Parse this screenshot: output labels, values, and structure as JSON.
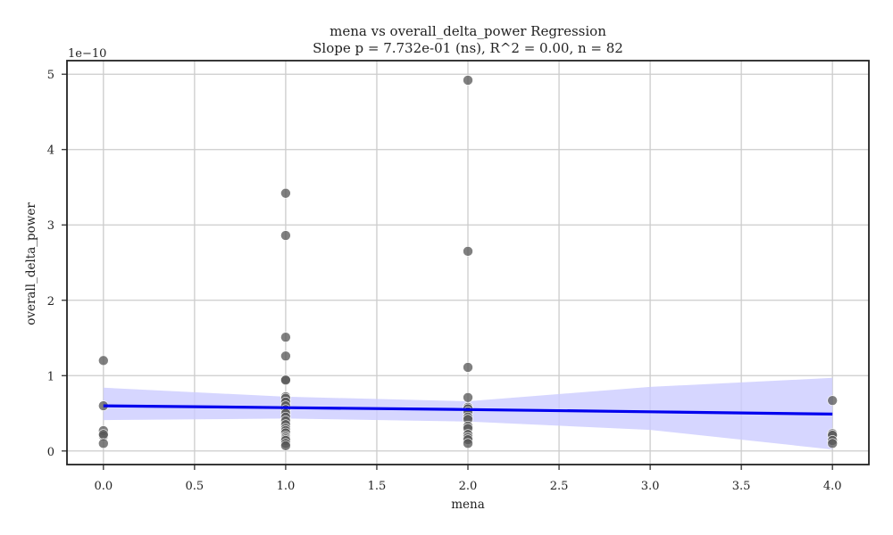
{
  "chart_data": {
    "type": "scatter",
    "title": "mena vs overall_delta_power Regression",
    "subtitle": "Slope p = 7.732e-01 (ns), R^2 = 0.00, n = 82",
    "xlabel": "mena",
    "ylabel": "overall_delta_power",
    "y_offset_label": "1e−10",
    "xlim": [
      -0.2,
      4.2
    ],
    "ylim": [
      -0.18,
      5.18
    ],
    "x_ticks": [
      0.0,
      0.5,
      1.0,
      1.5,
      2.0,
      2.5,
      3.0,
      3.5,
      4.0
    ],
    "x_tick_labels": [
      "0.0",
      "0.5",
      "1.0",
      "1.5",
      "2.0",
      "2.5",
      "3.0",
      "3.5",
      "4.0"
    ],
    "y_ticks": [
      0,
      1,
      2,
      3,
      4,
      5
    ],
    "y_tick_labels": [
      "0",
      "1",
      "2",
      "3",
      "4",
      "5"
    ],
    "grid": true,
    "point_color": "#555555",
    "regression": {
      "color": "#0000ee",
      "band_color": "#ccccff",
      "x": [
        0.0,
        1.0,
        2.0,
        3.0,
        4.0
      ],
      "y": [
        0.6,
        0.575,
        0.55,
        0.52,
        0.49
      ],
      "ci_low": [
        0.41,
        0.43,
        0.39,
        0.28,
        0.02
      ],
      "ci_high": [
        0.84,
        0.72,
        0.66,
        0.85,
        0.97
      ]
    },
    "points": [
      {
        "x": 0,
        "y": 1.2
      },
      {
        "x": 0,
        "y": 0.6
      },
      {
        "x": 0,
        "y": 0.27
      },
      {
        "x": 0,
        "y": 0.2
      },
      {
        "x": 0,
        "y": 0.22
      },
      {
        "x": 0,
        "y": 0.1
      },
      {
        "x": 1,
        "y": 3.42
      },
      {
        "x": 1,
        "y": 2.86
      },
      {
        "x": 1,
        "y": 1.51
      },
      {
        "x": 1,
        "y": 1.26
      },
      {
        "x": 1,
        "y": 0.95
      },
      {
        "x": 1,
        "y": 0.94
      },
      {
        "x": 1,
        "y": 0.72
      },
      {
        "x": 1,
        "y": 0.7
      },
      {
        "x": 1,
        "y": 0.65
      },
      {
        "x": 1,
        "y": 0.6
      },
      {
        "x": 1,
        "y": 0.55
      },
      {
        "x": 1,
        "y": 0.5
      },
      {
        "x": 1,
        "y": 0.45
      },
      {
        "x": 1,
        "y": 0.4
      },
      {
        "x": 1,
        "y": 0.35
      },
      {
        "x": 1,
        "y": 0.3
      },
      {
        "x": 1,
        "y": 0.27
      },
      {
        "x": 1,
        "y": 0.24
      },
      {
        "x": 1,
        "y": 0.2
      },
      {
        "x": 1,
        "y": 0.18
      },
      {
        "x": 1,
        "y": 0.16
      },
      {
        "x": 1,
        "y": 0.14
      },
      {
        "x": 1,
        "y": 0.1
      },
      {
        "x": 1,
        "y": 0.07
      },
      {
        "x": 2,
        "y": 4.92
      },
      {
        "x": 2,
        "y": 2.65
      },
      {
        "x": 2,
        "y": 1.11
      },
      {
        "x": 2,
        "y": 0.71
      },
      {
        "x": 2,
        "y": 0.58
      },
      {
        "x": 2,
        "y": 0.56
      },
      {
        "x": 2,
        "y": 0.52
      },
      {
        "x": 2,
        "y": 0.45
      },
      {
        "x": 2,
        "y": 0.42
      },
      {
        "x": 2,
        "y": 0.33
      },
      {
        "x": 2,
        "y": 0.3
      },
      {
        "x": 2,
        "y": 0.22
      },
      {
        "x": 2,
        "y": 0.18
      },
      {
        "x": 2,
        "y": 0.15
      },
      {
        "x": 2,
        "y": 0.1
      },
      {
        "x": 4,
        "y": 0.67
      },
      {
        "x": 4,
        "y": 0.23
      },
      {
        "x": 4,
        "y": 0.21
      },
      {
        "x": 4,
        "y": 0.14
      },
      {
        "x": 4,
        "y": 0.1
      }
    ]
  }
}
